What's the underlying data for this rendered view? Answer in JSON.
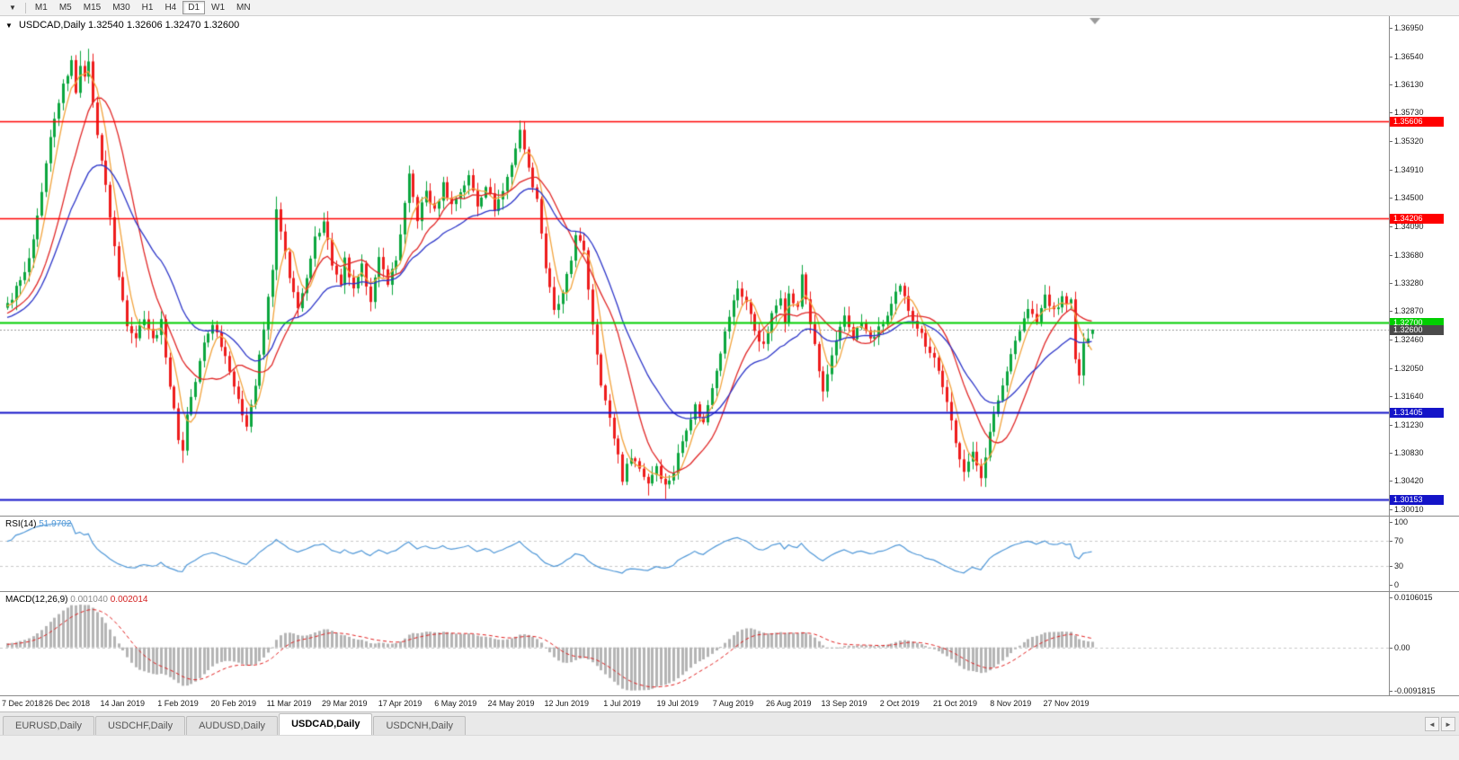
{
  "toolbar": {
    "menu_arrow": "▼",
    "timeframes": [
      "M1",
      "M5",
      "M15",
      "M30",
      "H1",
      "H4",
      "D1",
      "W1",
      "MN"
    ],
    "active_timeframe": "D1"
  },
  "chart": {
    "title_symbol": "USDCAD,Daily",
    "ohlc": "1.32540 1.32606 1.32470 1.32600",
    "one_click_arrow": "▼"
  },
  "rsi": {
    "label": "RSI(14)",
    "value": "51.9702"
  },
  "macd": {
    "label": "MACD(12,26,9)",
    "value_main": "0.001040",
    "value_signal": "0.002014"
  },
  "price_axis": {
    "ticks": [
      "1.36950",
      "1.36540",
      "1.36130",
      "1.35730",
      "1.35320",
      "1.34910",
      "1.34500",
      "1.34090",
      "1.33680",
      "1.33280",
      "1.32870",
      "1.32460",
      "1.32050",
      "1.31640",
      "1.31230",
      "1.30830",
      "1.30420",
      "1.30010"
    ],
    "levels": [
      {
        "label": "1.35606",
        "value": 1.35606,
        "color": "#FF0000",
        "width": 1.6
      },
      {
        "label": "1.34206",
        "value": 1.34206,
        "color": "#FF0000",
        "width": 1.6
      },
      {
        "label": "1.32700",
        "value": 1.327,
        "color": "#00CE00",
        "width": 2
      },
      {
        "label": "1.31405",
        "value": 1.31405,
        "color": "#1414C8",
        "width": 1.8
      },
      {
        "label": "1.30153",
        "value": 1.30153,
        "color": "#1414C8",
        "width": 1.8
      }
    ],
    "current": {
      "label": "1.32600",
      "value": 1.326,
      "badge_color": "#4a4a4a"
    }
  },
  "date_axis": {
    "labels": [
      {
        "t": "7 Dec 2018",
        "i": 1
      },
      {
        "t": "26 Dec 2018",
        "i": 14
      },
      {
        "t": "14 Jan 2019",
        "i": 27
      },
      {
        "t": "1 Feb 2019",
        "i": 40
      },
      {
        "t": "20 Feb 2019",
        "i": 53
      },
      {
        "t": "11 Mar 2019",
        "i": 66
      },
      {
        "t": "29 Mar 2019",
        "i": 79
      },
      {
        "t": "17 Apr 2019",
        "i": 92
      },
      {
        "t": "6 May 2019",
        "i": 105
      },
      {
        "t": "24 May 2019",
        "i": 118
      },
      {
        "t": "12 Jun 2019",
        "i": 131
      },
      {
        "t": "1 Jul 2019",
        "i": 144
      },
      {
        "t": "19 Jul 2019",
        "i": 157
      },
      {
        "t": "7 Aug 2019",
        "i": 170
      },
      {
        "t": "26 Aug 2019",
        "i": 183
      },
      {
        "t": "13 Sep 2019",
        "i": 196
      },
      {
        "t": "2 Oct 2019",
        "i": 209
      },
      {
        "t": "21 Oct 2019",
        "i": 222
      },
      {
        "t": "8 Nov 2019",
        "i": 235
      },
      {
        "t": "27 Nov 2019",
        "i": 248
      }
    ]
  },
  "tabs": {
    "items": [
      {
        "label": "EURUSD,Daily"
      },
      {
        "label": "USDCHF,Daily"
      },
      {
        "label": "AUDUSD,Daily"
      },
      {
        "label": "USDCAD,Daily"
      },
      {
        "label": "USDCNH,Daily"
      }
    ],
    "active_index": 3,
    "scroll_left": "◄",
    "scroll_right": "►"
  },
  "chart_data": {
    "type": "candlestick",
    "symbol": "USDCAD",
    "timeframe": "Daily",
    "last_ohlc": {
      "open": 1.3254,
      "high": 1.32606,
      "low": 1.3247,
      "close": 1.326
    },
    "ylim": [
      1.3001,
      1.3695
    ],
    "view_price_range": [
      1.2992,
      1.3712
    ],
    "visible_candles": 255,
    "pre_history_candles": 60,
    "close_anchors": [
      [
        -60,
        1.32
      ],
      [
        -45,
        1.3265
      ],
      [
        -30,
        1.328
      ],
      [
        -15,
        1.3255
      ],
      [
        -5,
        1.329
      ],
      [
        0,
        1.3295
      ],
      [
        2,
        1.332
      ],
      [
        4,
        1.334
      ],
      [
        6,
        1.3385
      ],
      [
        8,
        1.3455
      ],
      [
        10,
        1.3535
      ],
      [
        12,
        1.359
      ],
      [
        14,
        1.363
      ],
      [
        15,
        1.3645
      ],
      [
        16,
        1.3605
      ],
      [
        17,
        1.3645
      ],
      [
        18,
        1.362
      ],
      [
        19,
        1.365
      ],
      [
        20,
        1.3585
      ],
      [
        22,
        1.3505
      ],
      [
        24,
        1.3425
      ],
      [
        26,
        1.3335
      ],
      [
        28,
        1.327
      ],
      [
        30,
        1.325
      ],
      [
        32,
        1.328
      ],
      [
        34,
        1.3245
      ],
      [
        36,
        1.327
      ],
      [
        38,
        1.318
      ],
      [
        40,
        1.3105
      ],
      [
        41,
        1.3085
      ],
      [
        42,
        1.314
      ],
      [
        44,
        1.3185
      ],
      [
        46,
        1.324
      ],
      [
        48,
        1.327
      ],
      [
        50,
        1.324
      ],
      [
        52,
        1.3205
      ],
      [
        54,
        1.3155
      ],
      [
        56,
        1.3125
      ],
      [
        58,
        1.318
      ],
      [
        60,
        1.326
      ],
      [
        62,
        1.335
      ],
      [
        63,
        1.343
      ],
      [
        65,
        1.337
      ],
      [
        66,
        1.333
      ],
      [
        68,
        1.3295
      ],
      [
        70,
        1.333
      ],
      [
        72,
        1.339
      ],
      [
        74,
        1.342
      ],
      [
        76,
        1.3355
      ],
      [
        78,
        1.332
      ],
      [
        79,
        1.336
      ],
      [
        81,
        1.3315
      ],
      [
        83,
        1.335
      ],
      [
        85,
        1.3305
      ],
      [
        87,
        1.336
      ],
      [
        89,
        1.333
      ],
      [
        91,
        1.336
      ],
      [
        93,
        1.344
      ],
      [
        94,
        1.348
      ],
      [
        96,
        1.342
      ],
      [
        98,
        1.346
      ],
      [
        100,
        1.343
      ],
      [
        102,
        1.347
      ],
      [
        104,
        1.344
      ],
      [
        106,
        1.346
      ],
      [
        108,
        1.348
      ],
      [
        110,
        1.344
      ],
      [
        112,
        1.347
      ],
      [
        114,
        1.3435
      ],
      [
        116,
        1.346
      ],
      [
        118,
        1.35
      ],
      [
        120,
        1.3545
      ],
      [
        121,
        1.3525
      ],
      [
        122,
        1.349
      ],
      [
        124,
        1.345
      ],
      [
        126,
        1.335
      ],
      [
        128,
        1.3285
      ],
      [
        130,
        1.331
      ],
      [
        132,
        1.336
      ],
      [
        133,
        1.34
      ],
      [
        135,
        1.337
      ],
      [
        137,
        1.327
      ],
      [
        139,
        1.3185
      ],
      [
        141,
        1.313
      ],
      [
        143,
        1.308
      ],
      [
        144,
        1.3045
      ],
      [
        146,
        1.308
      ],
      [
        148,
        1.306
      ],
      [
        150,
        1.304
      ],
      [
        152,
        1.3065
      ],
      [
        154,
        1.3035
      ],
      [
        156,
        1.3055
      ],
      [
        157,
        1.308
      ],
      [
        159,
        1.312
      ],
      [
        161,
        1.315
      ],
      [
        163,
        1.3125
      ],
      [
        165,
        1.318
      ],
      [
        167,
        1.323
      ],
      [
        169,
        1.328
      ],
      [
        171,
        1.332
      ],
      [
        173,
        1.33
      ],
      [
        175,
        1.326
      ],
      [
        177,
        1.3235
      ],
      [
        179,
        1.328
      ],
      [
        181,
        1.331
      ],
      [
        182,
        1.3275
      ],
      [
        183,
        1.331
      ],
      [
        185,
        1.329
      ],
      [
        186,
        1.334
      ],
      [
        188,
        1.327
      ],
      [
        190,
        1.32
      ],
      [
        191,
        1.317
      ],
      [
        193,
        1.322
      ],
      [
        195,
        1.326
      ],
      [
        196,
        1.328
      ],
      [
        198,
        1.325
      ],
      [
        200,
        1.327
      ],
      [
        202,
        1.3245
      ],
      [
        204,
        1.326
      ],
      [
        206,
        1.328
      ],
      [
        208,
        1.331
      ],
      [
        209,
        1.332
      ],
      [
        211,
        1.329
      ],
      [
        213,
        1.3265
      ],
      [
        215,
        1.324
      ],
      [
        217,
        1.322
      ],
      [
        219,
        1.318
      ],
      [
        221,
        1.3125
      ],
      [
        222,
        1.3095
      ],
      [
        224,
        1.306
      ],
      [
        226,
        1.308
      ],
      [
        228,
        1.305
      ],
      [
        230,
        1.311
      ],
      [
        232,
        1.316
      ],
      [
        234,
        1.32
      ],
      [
        235,
        1.323
      ],
      [
        237,
        1.326
      ],
      [
        239,
        1.329
      ],
      [
        241,
        1.327
      ],
      [
        243,
        1.331
      ],
      [
        245,
        1.3285
      ],
      [
        247,
        1.3305
      ],
      [
        249,
        1.33
      ],
      [
        250,
        1.3215
      ],
      [
        251,
        1.3195
      ],
      [
        252,
        1.3235
      ],
      [
        253,
        1.3252
      ],
      [
        254,
        1.326
      ]
    ],
    "wick_overrides": {
      "15": {
        "high": 1.3655
      },
      "17": {
        "high": 1.3662
      },
      "19": {
        "high": 1.3665
      },
      "41": {
        "low": 1.3068
      },
      "63": {
        "high": 1.3452
      },
      "121": {
        "high": 1.35606
      },
      "150": {
        "low": 1.3021
      },
      "154": {
        "low": 1.3016
      },
      "228": {
        "low": 1.3034
      },
      "251": {
        "low": 1.3182
      },
      "254": {
        "open": 1.3254,
        "high": 1.32606,
        "low": 1.3247,
        "close": 1.326
      }
    },
    "moving_averages": [
      {
        "name": "fast-ma",
        "type": "sma",
        "period": 5,
        "color": "#F2A33C"
      },
      {
        "name": "medium-ma",
        "type": "sma",
        "period": 13,
        "color": "#E02626"
      },
      {
        "name": "slow-ma",
        "type": "ema",
        "period": 26,
        "color": "#2B34C8"
      }
    ],
    "horizontal_levels": [
      1.35606,
      1.34206,
      1.327,
      1.31405,
      1.30153
    ],
    "current_price": 1.326,
    "rsi": {
      "period": 14,
      "last": "51.9702",
      "dashed_levels": [
        70,
        30
      ],
      "axis": [
        100,
        70,
        30,
        0
      ],
      "range": [
        -10,
        108
      ]
    },
    "macd": {
      "fast": 12,
      "slow": 26,
      "signal": 9,
      "last_main": "0.001040",
      "last_signal": "0.002014",
      "axis_labels": [
        "0.0106015",
        "0.00",
        "-0.0091815"
      ],
      "range": [
        -0.0102,
        0.0118
      ]
    }
  }
}
